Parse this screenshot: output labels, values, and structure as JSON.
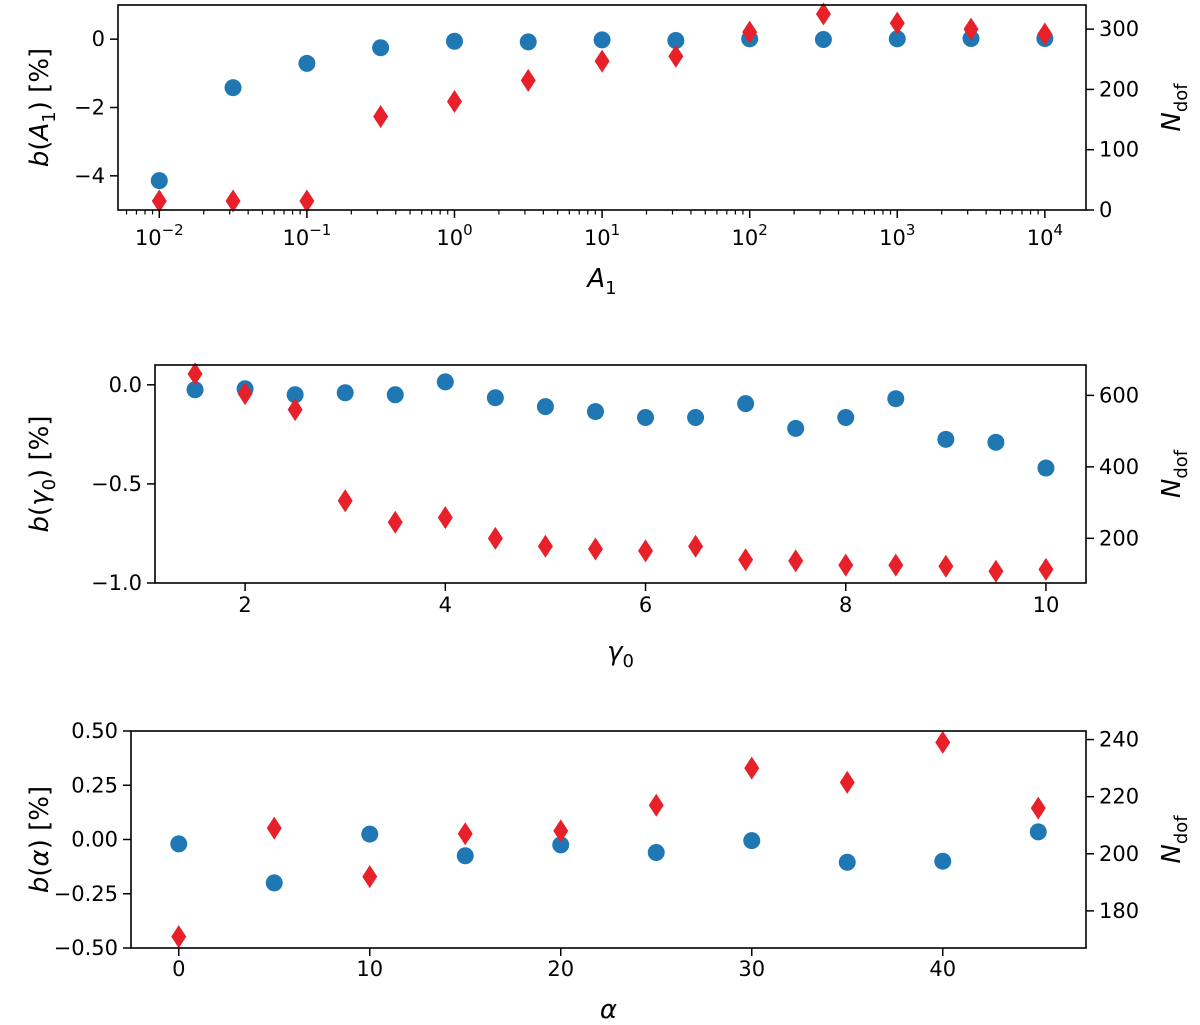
{
  "colors": {
    "blue": "#1f77b4",
    "red": "#e8202a",
    "axis": "#000000"
  },
  "chart_data": [
    {
      "type": "scatter",
      "title": "",
      "xscale": "log",
      "xlabel": "A",
      "xlabel_sub": "1",
      "ylabel_left": "b(A",
      "ylabel_left_sub": "1",
      "ylabel_left_tail": ") [%]",
      "ylabel_right": "N",
      "ylabel_right_sub": "dof",
      "x_ticks": [
        {
          "v": 0.01,
          "base": "10",
          "exp": "−2"
        },
        {
          "v": 0.1,
          "base": "10",
          "exp": "−1"
        },
        {
          "v": 1,
          "base": "10",
          "exp": "0"
        },
        {
          "v": 10,
          "base": "10",
          "exp": "1"
        },
        {
          "v": 100,
          "base": "10",
          "exp": "2"
        },
        {
          "v": 1000,
          "base": "10",
          "exp": "3"
        },
        {
          "v": 10000,
          "base": "10",
          "exp": "4"
        }
      ],
      "x_minor_ticks": true,
      "xlim": [
        0.00525,
        19000
      ],
      "ylim_left": [
        -5,
        1
      ],
      "yticks_left": [
        {
          "v": -4,
          "label": "−4"
        },
        {
          "v": -2,
          "label": "−2"
        },
        {
          "v": 0,
          "label": "0"
        }
      ],
      "ylim_right": [
        0,
        340
      ],
      "yticks_right": [
        {
          "v": 0,
          "label": "0"
        },
        {
          "v": 100,
          "label": "100"
        },
        {
          "v": 200,
          "label": "200"
        },
        {
          "v": 300,
          "label": "300"
        }
      ],
      "series": [
        {
          "name": "b(A1) [%]",
          "axis": "left",
          "marker": "circle",
          "color": "#1f77b4",
          "x": [
            0.01,
            0.0316,
            0.1,
            0.316,
            1,
            3.16,
            10,
            31.6,
            100,
            316,
            1000,
            3160,
            10000
          ],
          "y": [
            -4.14,
            -1.42,
            -0.71,
            -0.25,
            -0.06,
            -0.08,
            -0.02,
            -0.04,
            0.01,
            -0.01,
            0.01,
            0.02,
            0.02
          ]
        },
        {
          "name": "N_dof",
          "axis": "right",
          "marker": "diamond",
          "color": "#e8202a",
          "x": [
            0.01,
            0.0316,
            0.1,
            0.316,
            1,
            3.16,
            10,
            31.6,
            100,
            316,
            1000,
            3160,
            10000
          ],
          "y": [
            15,
            15,
            15,
            155,
            180,
            215,
            247,
            255,
            295,
            325,
            310,
            300,
            292
          ]
        }
      ]
    },
    {
      "type": "scatter",
      "title": "",
      "xscale": "linear",
      "xlabel": "γ",
      "xlabel_sub": "0",
      "ylabel_left": "b(γ",
      "ylabel_left_sub": "0",
      "ylabel_left_tail": ") [%]",
      "ylabel_right": "N",
      "ylabel_right_sub": "dof",
      "x_ticks": [
        {
          "v": 2,
          "label": "2"
        },
        {
          "v": 4,
          "label": "4"
        },
        {
          "v": 6,
          "label": "6"
        },
        {
          "v": 8,
          "label": "8"
        },
        {
          "v": 10,
          "label": "10"
        }
      ],
      "xlim": [
        1.1,
        10.4
      ],
      "ylim_left": [
        -1.0,
        0.1
      ],
      "yticks_left": [
        {
          "v": -1.0,
          "label": "−1.0"
        },
        {
          "v": -0.5,
          "label": "−0.5"
        },
        {
          "v": 0.0,
          "label": "0.0"
        }
      ],
      "ylim_right": [
        75,
        685
      ],
      "yticks_right": [
        {
          "v": 200,
          "label": "200"
        },
        {
          "v": 400,
          "label": "400"
        },
        {
          "v": 600,
          "label": "600"
        }
      ],
      "series": [
        {
          "name": "b(gamma0) [%]",
          "axis": "left",
          "marker": "circle",
          "color": "#1f77b4",
          "x": [
            1.5,
            2,
            2.5,
            3,
            3.5,
            4,
            4.5,
            5,
            5.5,
            6,
            6.5,
            7,
            7.5,
            8,
            8.5,
            9,
            9.5,
            10
          ],
          "y": [
            -0.025,
            -0.02,
            -0.05,
            -0.04,
            -0.05,
            0.015,
            -0.065,
            -0.11,
            -0.135,
            -0.165,
            -0.165,
            -0.095,
            -0.22,
            -0.165,
            -0.07,
            -0.275,
            -0.29,
            -0.42
          ]
        },
        {
          "name": "N_dof",
          "axis": "right",
          "marker": "diamond",
          "color": "#e8202a",
          "x": [
            1.5,
            2,
            2.5,
            3,
            3.5,
            4,
            4.5,
            5,
            5.5,
            6,
            6.5,
            7,
            7.5,
            8,
            8.5,
            9,
            9.5,
            10
          ],
          "y": [
            660,
            605,
            560,
            305,
            245,
            258,
            200,
            178,
            170,
            165,
            178,
            140,
            137,
            125,
            125,
            122,
            108,
            113
          ]
        }
      ]
    },
    {
      "type": "scatter",
      "title": "",
      "xscale": "linear",
      "xlabel": "α",
      "xlabel_sub": "",
      "ylabel_left": "b(α) [%]",
      "ylabel_left_sub": "",
      "ylabel_left_tail": "",
      "ylabel_right": "N",
      "ylabel_right_sub": "dof",
      "x_ticks": [
        {
          "v": 0,
          "label": "0"
        },
        {
          "v": 10,
          "label": "10"
        },
        {
          "v": 20,
          "label": "20"
        },
        {
          "v": 30,
          "label": "30"
        },
        {
          "v": 40,
          "label": "40"
        }
      ],
      "xlim": [
        -2.5,
        47.5
      ],
      "ylim_left": [
        -0.5,
        0.5
      ],
      "yticks_left": [
        {
          "v": -0.5,
          "label": "−0.50"
        },
        {
          "v": -0.25,
          "label": "−0.25"
        },
        {
          "v": 0.0,
          "label": "0.00"
        },
        {
          "v": 0.25,
          "label": "0.25"
        },
        {
          "v": 0.5,
          "label": "0.50"
        }
      ],
      "ylim_right": [
        167,
        243
      ],
      "yticks_right": [
        {
          "v": 180,
          "label": "180"
        },
        {
          "v": 200,
          "label": "200"
        },
        {
          "v": 220,
          "label": "220"
        },
        {
          "v": 240,
          "label": "240"
        }
      ],
      "series": [
        {
          "name": "b(alpha) [%]",
          "axis": "left",
          "marker": "circle",
          "color": "#1f77b4",
          "x": [
            0,
            5,
            10,
            15,
            20,
            25,
            30,
            35,
            40,
            45
          ],
          "y": [
            -0.02,
            -0.2,
            0.025,
            -0.075,
            -0.025,
            -0.06,
            -0.005,
            -0.105,
            -0.1,
            0.035
          ]
        },
        {
          "name": "N_dof",
          "axis": "right",
          "marker": "diamond",
          "color": "#e8202a",
          "x": [
            0,
            5,
            10,
            15,
            20,
            25,
            30,
            35,
            40,
            45
          ],
          "y": [
            171,
            209,
            192,
            207,
            208,
            217,
            230,
            225,
            239,
            216
          ]
        }
      ]
    }
  ]
}
